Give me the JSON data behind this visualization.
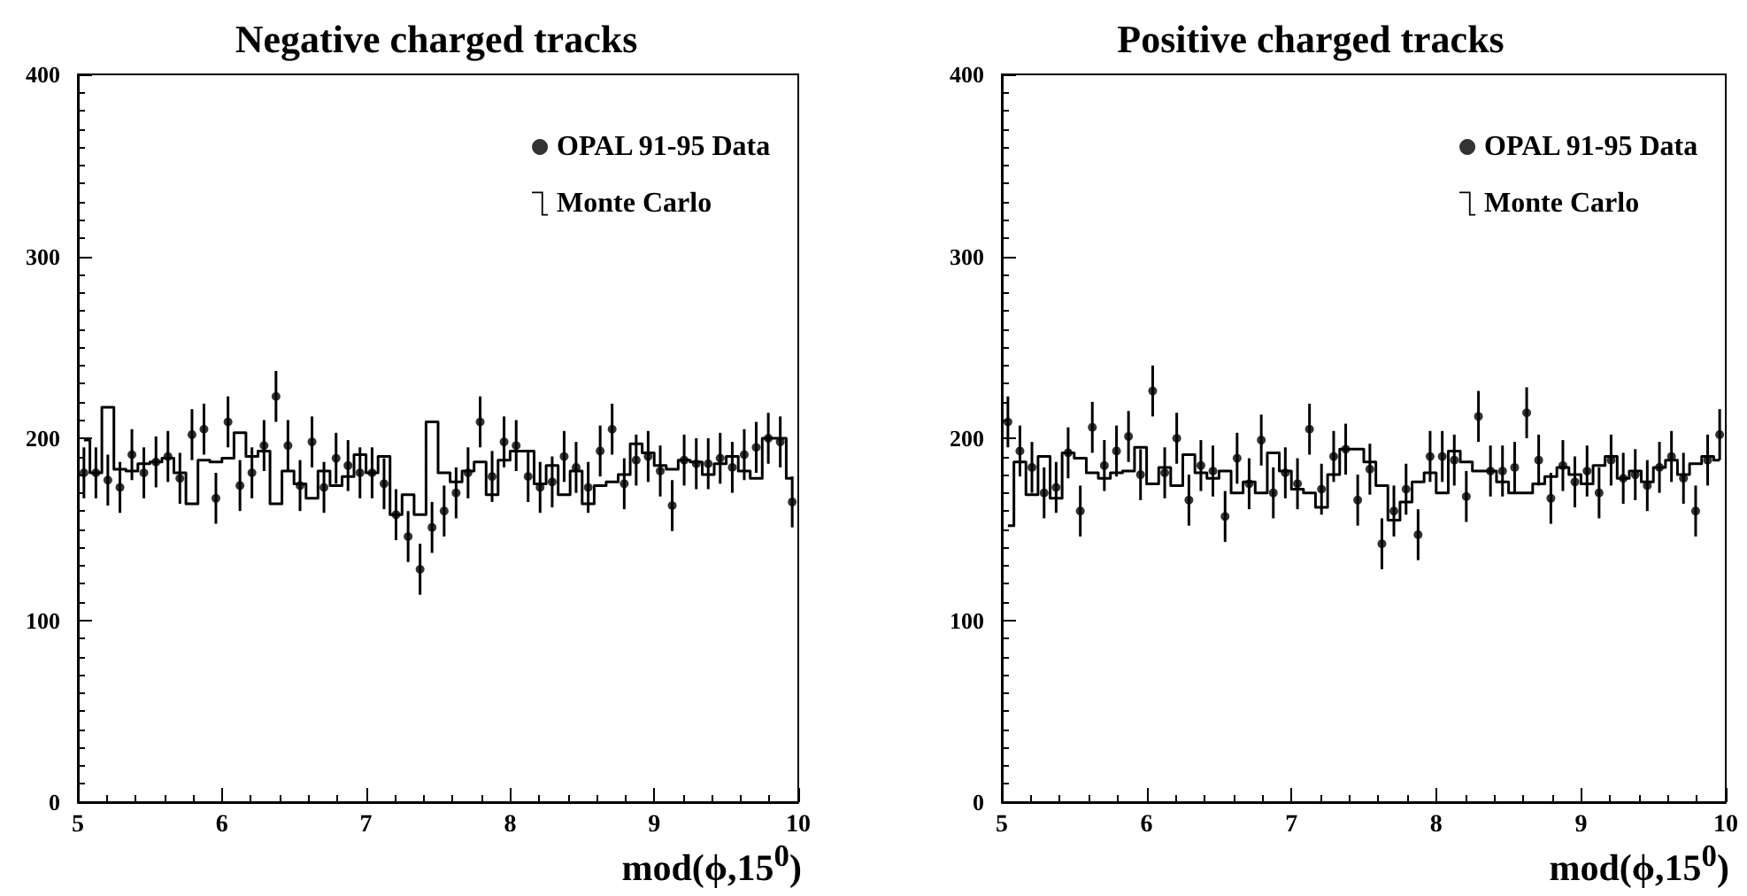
{
  "chart_data": [
    {
      "type": "scatter",
      "title": "Negative charged tracks",
      "xlabel": "mod(ϕ,15$^{0}$)",
      "x": [
        5.042,
        5.125,
        5.208,
        5.292,
        5.375,
        5.458,
        5.542,
        5.625,
        5.708,
        5.792,
        5.875,
        5.958,
        6.042,
        6.125,
        6.208,
        6.292,
        6.375,
        6.458,
        6.542,
        6.625,
        6.708,
        6.792,
        6.875,
        6.958,
        7.042,
        7.125,
        7.208,
        7.292,
        7.375,
        7.458,
        7.542,
        7.625,
        7.708,
        7.792,
        7.875,
        7.958,
        8.042,
        8.125,
        8.208,
        8.292,
        8.375,
        8.458,
        8.542,
        8.625,
        8.708,
        8.792,
        8.875,
        8.958,
        9.042,
        9.125,
        9.208,
        9.292,
        9.375,
        9.458,
        9.542,
        9.625,
        9.708,
        9.792,
        9.875,
        9.958
      ],
      "xlim": [
        5,
        10
      ],
      "xticks": [
        5,
        6,
        7,
        8,
        9,
        10
      ],
      "ylim": [
        0,
        400
      ],
      "yticks": [
        0,
        100,
        200,
        300,
        400
      ],
      "grid": false,
      "legend": "top right",
      "series": [
        {
          "name": "OPAL 91-95 Data",
          "color": "#000000",
          "marker": "circle",
          "values": [
            181,
            181,
            177,
            173,
            191,
            181,
            187,
            190,
            178,
            202,
            205,
            167,
            209,
            174,
            181,
            196,
            223,
            196,
            174,
            198,
            173,
            189,
            185,
            181,
            181,
            175,
            158,
            146,
            128,
            151,
            160,
            170,
            181,
            209,
            179,
            198,
            196,
            179,
            173,
            176,
            190,
            184,
            173,
            193,
            205,
            175,
            188,
            190,
            182,
            163,
            188,
            186,
            186,
            189,
            184,
            191,
            195,
            200,
            198,
            165
          ],
          "errors": [
            14,
            14,
            14,
            14,
            14,
            14,
            14,
            14,
            14,
            14,
            14,
            14,
            14,
            14,
            14,
            14,
            14,
            14,
            14,
            14,
            14,
            14,
            14,
            14,
            14,
            14,
            14,
            14,
            14,
            14,
            14,
            14,
            14,
            14,
            14,
            14,
            14,
            14,
            14,
            14,
            14,
            14,
            14,
            14,
            14,
            14,
            14,
            14,
            14,
            14,
            14,
            14,
            14,
            14,
            14,
            14,
            14,
            14,
            14,
            14
          ]
        },
        {
          "type": "step",
          "name": "Monte Carlo",
          "color": "#000000",
          "values": [
            199,
            181,
            217,
            183,
            182,
            186,
            187,
            189,
            181,
            164,
            188,
            187,
            189,
            203,
            190,
            193,
            164,
            182,
            175,
            167,
            182,
            174,
            179,
            191,
            181,
            190,
            158,
            169,
            158,
            209,
            181,
            176,
            182,
            187,
            169,
            188,
            193,
            193,
            175,
            185,
            169,
            182,
            164,
            174,
            176,
            180,
            197,
            192,
            185,
            183,
            188,
            187,
            180,
            186,
            190,
            182,
            178,
            200,
            200,
            178
          ]
        }
      ]
    },
    {
      "type": "scatter",
      "title": "Positive charged tracks",
      "xlabel": "mod(ϕ,15$^{0}$)",
      "x": [
        5.042,
        5.125,
        5.208,
        5.292,
        5.375,
        5.458,
        5.542,
        5.625,
        5.708,
        5.792,
        5.875,
        5.958,
        6.042,
        6.125,
        6.208,
        6.292,
        6.375,
        6.458,
        6.542,
        6.625,
        6.708,
        6.792,
        6.875,
        6.958,
        7.042,
        7.125,
        7.208,
        7.292,
        7.375,
        7.458,
        7.542,
        7.625,
        7.708,
        7.792,
        7.875,
        7.958,
        8.042,
        8.125,
        8.208,
        8.292,
        8.375,
        8.458,
        8.542,
        8.625,
        8.708,
        8.792,
        8.875,
        8.958,
        9.042,
        9.125,
        9.208,
        9.292,
        9.375,
        9.458,
        9.542,
        9.625,
        9.708,
        9.792,
        9.875,
        9.958
      ],
      "xlim": [
        5,
        10
      ],
      "xticks": [
        5,
        6,
        7,
        8,
        9,
        10
      ],
      "ylim": [
        0,
        400
      ],
      "yticks": [
        0,
        100,
        200,
        300,
        400
      ],
      "grid": false,
      "legend": "top right",
      "series": [
        {
          "name": "OPAL 91-95 Data",
          "color": "#000000",
          "marker": "circle",
          "values": [
            209,
            193,
            184,
            170,
            173,
            192,
            160,
            206,
            185,
            193,
            201,
            180,
            226,
            181,
            200,
            166,
            185,
            182,
            157,
            189,
            175,
            199,
            170,
            181,
            175,
            205,
            172,
            190,
            194,
            166,
            183,
            142,
            160,
            172,
            147,
            190,
            190,
            188,
            168,
            212,
            182,
            182,
            184,
            214,
            188,
            167,
            185,
            176,
            182,
            170,
            188,
            178,
            180,
            174,
            184,
            190,
            178,
            160,
            188,
            202
          ],
          "errors": [
            14,
            14,
            14,
            14,
            14,
            14,
            14,
            14,
            14,
            14,
            14,
            14,
            14,
            14,
            14,
            14,
            14,
            14,
            14,
            14,
            14,
            14,
            14,
            14,
            14,
            14,
            14,
            14,
            14,
            14,
            14,
            14,
            14,
            14,
            14,
            14,
            14,
            14,
            14,
            14,
            14,
            14,
            14,
            14,
            14,
            14,
            14,
            14,
            14,
            14,
            14,
            14,
            14,
            14,
            14,
            14,
            14,
            14,
            14,
            14
          ]
        },
        {
          "type": "step",
          "name": "Monte Carlo",
          "color": "#000000",
          "values": [
            152,
            187,
            169,
            190,
            167,
            192,
            189,
            181,
            178,
            181,
            182,
            195,
            175,
            184,
            174,
            191,
            181,
            178,
            182,
            170,
            176,
            170,
            192,
            182,
            172,
            170,
            162,
            180,
            194,
            194,
            187,
            174,
            155,
            165,
            176,
            181,
            170,
            193,
            187,
            182,
            182,
            176,
            170,
            170,
            175,
            179,
            184,
            180,
            175,
            185,
            190,
            178,
            182,
            176,
            184,
            188,
            180,
            186,
            190,
            188
          ]
        }
      ]
    }
  ]
}
